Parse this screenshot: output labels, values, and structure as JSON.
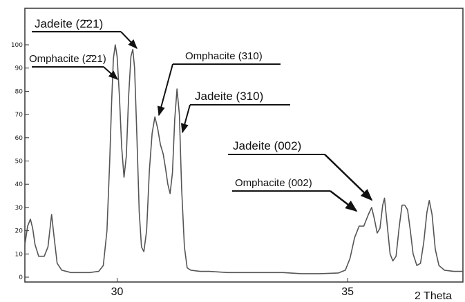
{
  "chart_data": {
    "type": "line",
    "title": "",
    "xlabel": "2 Theta",
    "ylabel": "",
    "xlim": [
      28.0,
      37.5
    ],
    "ylim": [
      0,
      115
    ],
    "grid": false,
    "legend": "none",
    "x_ticks": [
      30,
      35
    ],
    "x_tick_labels": [
      "30",
      "35"
    ],
    "y_ticks": [
      0,
      10,
      20,
      30,
      40,
      50,
      60,
      70,
      80,
      90,
      100
    ],
    "y_tick_labels": [
      "0",
      "10",
      "20",
      "30",
      "40",
      "50",
      "60",
      "70",
      "80",
      "90",
      "100"
    ],
    "series": [
      {
        "color": "#555555",
        "points": [
          [
            28.0,
            14
          ],
          [
            28.06,
            22
          ],
          [
            28.12,
            25
          ],
          [
            28.17,
            21
          ],
          [
            28.22,
            14
          ],
          [
            28.3,
            9
          ],
          [
            28.42,
            9
          ],
          [
            28.5,
            13
          ],
          [
            28.58,
            27
          ],
          [
            28.63,
            18
          ],
          [
            28.7,
            6
          ],
          [
            28.8,
            3
          ],
          [
            29.0,
            2
          ],
          [
            29.2,
            2
          ],
          [
            29.4,
            2
          ],
          [
            29.6,
            2.5
          ],
          [
            29.7,
            5
          ],
          [
            29.78,
            20
          ],
          [
            29.84,
            50
          ],
          [
            29.88,
            75
          ],
          [
            29.92,
            94
          ],
          [
            29.96,
            100
          ],
          [
            30.0,
            95
          ],
          [
            30.05,
            78
          ],
          [
            30.1,
            56
          ],
          [
            30.15,
            43
          ],
          [
            30.2,
            52
          ],
          [
            30.25,
            78
          ],
          [
            30.3,
            95
          ],
          [
            30.34,
            98
          ],
          [
            30.38,
            90
          ],
          [
            30.43,
            60
          ],
          [
            30.48,
            28
          ],
          [
            30.53,
            13
          ],
          [
            30.58,
            11
          ],
          [
            30.64,
            20
          ],
          [
            30.7,
            46
          ],
          [
            30.76,
            62
          ],
          [
            30.82,
            69
          ],
          [
            30.88,
            64
          ],
          [
            30.94,
            57
          ],
          [
            31.0,
            53
          ],
          [
            31.05,
            47
          ],
          [
            31.1,
            40
          ],
          [
            31.15,
            36
          ],
          [
            31.2,
            45
          ],
          [
            31.25,
            68
          ],
          [
            31.3,
            81
          ],
          [
            31.35,
            70
          ],
          [
            31.4,
            38
          ],
          [
            31.46,
            13
          ],
          [
            31.52,
            4
          ],
          [
            31.6,
            3
          ],
          [
            31.8,
            2.5
          ],
          [
            32.0,
            2.5
          ],
          [
            32.4,
            2
          ],
          [
            32.8,
            2
          ],
          [
            33.2,
            2
          ],
          [
            33.6,
            2
          ],
          [
            34.0,
            1.5
          ],
          [
            34.4,
            1.5
          ],
          [
            34.8,
            1.8
          ],
          [
            34.95,
            3
          ],
          [
            35.05,
            8
          ],
          [
            35.15,
            17
          ],
          [
            35.25,
            22
          ],
          [
            35.35,
            22
          ],
          [
            35.45,
            27
          ],
          [
            35.52,
            30
          ],
          [
            35.58,
            25
          ],
          [
            35.64,
            19
          ],
          [
            35.7,
            21
          ],
          [
            35.76,
            31
          ],
          [
            35.8,
            34
          ],
          [
            35.85,
            24
          ],
          [
            35.92,
            10
          ],
          [
            35.98,
            7
          ],
          [
            36.05,
            9
          ],
          [
            36.12,
            22
          ],
          [
            36.18,
            31
          ],
          [
            36.24,
            31
          ],
          [
            36.3,
            29
          ],
          [
            36.36,
            20
          ],
          [
            36.42,
            10
          ],
          [
            36.5,
            5
          ],
          [
            36.58,
            6
          ],
          [
            36.65,
            15
          ],
          [
            36.72,
            28
          ],
          [
            36.77,
            33
          ],
          [
            36.83,
            27
          ],
          [
            36.9,
            12
          ],
          [
            36.98,
            5
          ],
          [
            37.1,
            3
          ],
          [
            37.3,
            2.5
          ],
          [
            37.5,
            2.5
          ]
        ]
      }
    ],
    "annotations": [
      {
        "text": "Jadeite (̄221)",
        "display": "Jadeite (2̄ 21)"
      }
    ]
  },
  "labels": {
    "jadeite_221": "Jadeite (2̄21)",
    "omphacite_221": "Omphacite (2̄21)",
    "omphacite_310": "Omphacite (310)",
    "jadeite_310": "Jadeite (310)",
    "jadeite_002": "Jadeite (002)",
    "omphacite_002": "Omphacite (002)"
  }
}
